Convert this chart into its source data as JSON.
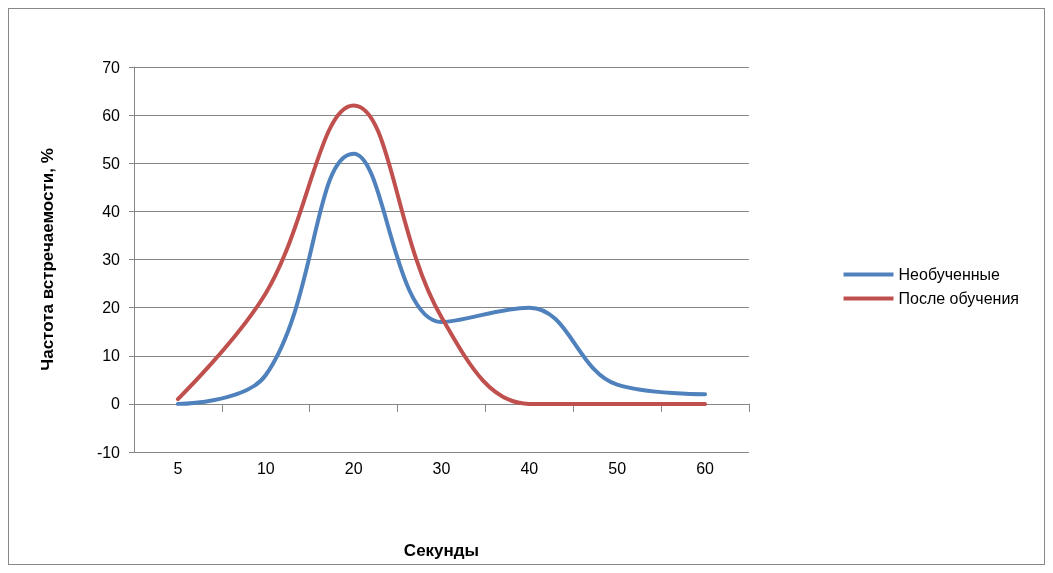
{
  "chart_data": {
    "type": "line",
    "xlabel": "Секунды",
    "ylabel": "Частота встречаемости, %",
    "categories": [
      "5",
      "10",
      "20",
      "30",
      "40",
      "50",
      "60"
    ],
    "series": [
      {
        "name": "Необученные",
        "color": "#4f81bd",
        "values": [
          0,
          6,
          52,
          17,
          20,
          4,
          2
        ]
      },
      {
        "name": "После обучения",
        "color": "#c0504d",
        "values": [
          1,
          23,
          62,
          18,
          0,
          0,
          0
        ]
      }
    ],
    "ylim": [
      -10,
      70
    ],
    "yticks": [
      -10,
      0,
      10,
      20,
      30,
      40,
      50,
      60,
      70
    ],
    "grid": "y",
    "legend": "right",
    "marker": "none",
    "line_style": "solid"
  }
}
